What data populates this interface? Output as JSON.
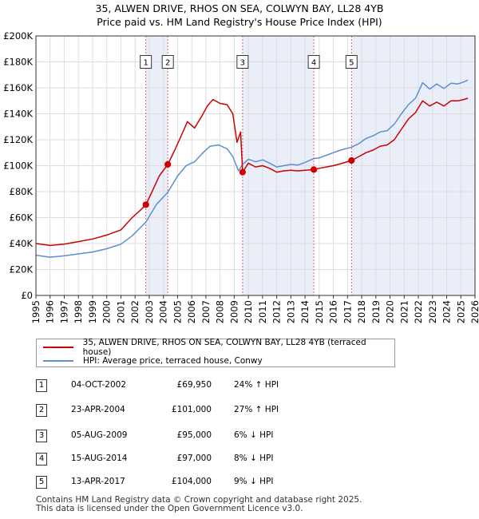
{
  "chart_data": {
    "type": "line",
    "title": "35, ALWEN DRIVE, RHOS ON SEA, COLWYN BAY, LL28 4YB",
    "subtitle": "Price paid vs. HM Land Registry's House Price Index (HPI)",
    "xlim": [
      1995,
      2026
    ],
    "ylim": [
      0,
      200000
    ],
    "x_ticks": [
      1995,
      1996,
      1997,
      1998,
      1999,
      2000,
      2001,
      2002,
      2003,
      2004,
      2005,
      2006,
      2007,
      2008,
      2009,
      2010,
      2011,
      2012,
      2013,
      2014,
      2015,
      2016,
      2017,
      2018,
      2019,
      2020,
      2021,
      2022,
      2023,
      2024,
      2025,
      2026
    ],
    "y_ticks": [
      {
        "value": 0,
        "label": "£0"
      },
      {
        "value": 20000,
        "label": "£20K"
      },
      {
        "value": 40000,
        "label": "£40K"
      },
      {
        "value": 60000,
        "label": "£60K"
      },
      {
        "value": 80000,
        "label": "£80K"
      },
      {
        "value": 100000,
        "label": "£100K"
      },
      {
        "value": 120000,
        "label": "£120K"
      },
      {
        "value": 140000,
        "label": "£140K"
      },
      {
        "value": 160000,
        "label": "£160K"
      },
      {
        "value": 180000,
        "label": "£180K"
      },
      {
        "value": 200000,
        "label": "£200K"
      }
    ],
    "series": [
      {
        "name": "35, ALWEN DRIVE, RHOS ON SEA, COLWYN BAY, LL28 4YB (terraced house)",
        "color": "#cc0000",
        "points": [
          [
            1995.0,
            40000
          ],
          [
            1996.0,
            38500
          ],
          [
            1997.0,
            39500
          ],
          [
            1998.0,
            41500
          ],
          [
            1999.0,
            43500
          ],
          [
            2000.0,
            46500
          ],
          [
            2001.0,
            50500
          ],
          [
            2001.8,
            60000
          ],
          [
            2002.4,
            66000
          ],
          [
            2002.76,
            69950
          ],
          [
            2003.2,
            80000
          ],
          [
            2003.7,
            92000
          ],
          [
            2004.31,
            101000
          ],
          [
            2004.8,
            112000
          ],
          [
            2005.3,
            124000
          ],
          [
            2005.7,
            134000
          ],
          [
            2006.2,
            129000
          ],
          [
            2006.7,
            138000
          ],
          [
            2007.1,
            146000
          ],
          [
            2007.5,
            151000
          ],
          [
            2008.0,
            148000
          ],
          [
            2008.5,
            147000
          ],
          [
            2008.9,
            140000
          ],
          [
            2009.2,
            118000
          ],
          [
            2009.45,
            126000
          ],
          [
            2009.59,
            95000
          ],
          [
            2010.0,
            102000
          ],
          [
            2010.5,
            99000
          ],
          [
            2011.0,
            100000
          ],
          [
            2011.5,
            98000
          ],
          [
            2012.0,
            95000
          ],
          [
            2012.5,
            96000
          ],
          [
            2013.0,
            96500
          ],
          [
            2013.5,
            96000
          ],
          [
            2014.0,
            96500
          ],
          [
            2014.62,
            97000
          ],
          [
            2015.0,
            98000
          ],
          [
            2015.5,
            99000
          ],
          [
            2016.0,
            100000
          ],
          [
            2016.5,
            101500
          ],
          [
            2017.28,
            104000
          ],
          [
            2017.8,
            107000
          ],
          [
            2018.3,
            110000
          ],
          [
            2018.8,
            112000
          ],
          [
            2019.3,
            115000
          ],
          [
            2019.8,
            116000
          ],
          [
            2020.3,
            120000
          ],
          [
            2020.8,
            128000
          ],
          [
            2021.3,
            136000
          ],
          [
            2021.8,
            141000
          ],
          [
            2022.3,
            150000
          ],
          [
            2022.8,
            146000
          ],
          [
            2023.3,
            149000
          ],
          [
            2023.8,
            146000
          ],
          [
            2024.3,
            150000
          ],
          [
            2024.8,
            150000
          ],
          [
            2025.2,
            151000
          ],
          [
            2025.5,
            152000
          ]
        ]
      },
      {
        "name": "HPI: Average price, terraced house, Conwy",
        "color": "#5b8fcf",
        "points": [
          [
            1995.0,
            31000
          ],
          [
            1996.0,
            29500
          ],
          [
            1997.0,
            30500
          ],
          [
            1998.0,
            32000
          ],
          [
            1999.0,
            33500
          ],
          [
            2000.0,
            36000
          ],
          [
            2001.0,
            39500
          ],
          [
            2001.8,
            46000
          ],
          [
            2002.76,
            56500
          ],
          [
            2003.5,
            70000
          ],
          [
            2004.31,
            79500
          ],
          [
            2005.0,
            92000
          ],
          [
            2005.6,
            100000
          ],
          [
            2006.2,
            103000
          ],
          [
            2006.8,
            110000
          ],
          [
            2007.3,
            115000
          ],
          [
            2007.9,
            116000
          ],
          [
            2008.5,
            113000
          ],
          [
            2008.9,
            107000
          ],
          [
            2009.3,
            96000
          ],
          [
            2009.59,
            101000
          ],
          [
            2010.0,
            105000
          ],
          [
            2010.5,
            103000
          ],
          [
            2011.0,
            104500
          ],
          [
            2011.5,
            102000
          ],
          [
            2012.0,
            99000
          ],
          [
            2012.5,
            100000
          ],
          [
            2013.0,
            101000
          ],
          [
            2013.5,
            100500
          ],
          [
            2014.0,
            102500
          ],
          [
            2014.62,
            105500
          ],
          [
            2015.0,
            106000
          ],
          [
            2015.5,
            108000
          ],
          [
            2016.0,
            110000
          ],
          [
            2016.5,
            112000
          ],
          [
            2017.28,
            114300
          ],
          [
            2017.8,
            117000
          ],
          [
            2018.3,
            121000
          ],
          [
            2018.8,
            123000
          ],
          [
            2019.3,
            126000
          ],
          [
            2019.8,
            127000
          ],
          [
            2020.3,
            132000
          ],
          [
            2020.8,
            140000
          ],
          [
            2021.3,
            147000
          ],
          [
            2021.8,
            152000
          ],
          [
            2022.3,
            164000
          ],
          [
            2022.8,
            159000
          ],
          [
            2023.3,
            163000
          ],
          [
            2023.8,
            159500
          ],
          [
            2024.3,
            163500
          ],
          [
            2024.8,
            163000
          ],
          [
            2025.2,
            164500
          ],
          [
            2025.5,
            166000
          ]
        ]
      }
    ],
    "sales": [
      {
        "id": "1",
        "x": 2002.76,
        "price": 69950
      },
      {
        "id": "2",
        "x": 2004.31,
        "price": 101000
      },
      {
        "id": "3",
        "x": 2009.59,
        "price": 95000
      },
      {
        "id": "4",
        "x": 2014.62,
        "price": 97000
      },
      {
        "id": "5",
        "x": 2017.28,
        "price": 104000
      }
    ],
    "shaded_ranges": [
      [
        2002.76,
        2004.31
      ],
      [
        2009.59,
        2014.62
      ],
      [
        2017.28,
        2026
      ]
    ],
    "shade_color": "#e9eef9",
    "marker_box_y": 180000
  },
  "legend": {
    "property_label": "35, ALWEN DRIVE, RHOS ON SEA, COLWYN BAY, LL28 4YB (terraced house)",
    "hpi_label": "HPI: Average price, terraced house, Conwy",
    "property_color": "#cc0000",
    "hpi_color": "#5b8fcf"
  },
  "transactions": [
    {
      "num": "1",
      "date": "04-OCT-2002",
      "price": "£69,950",
      "hpi": "24% ↑ HPI"
    },
    {
      "num": "2",
      "date": "23-APR-2004",
      "price": "£101,000",
      "hpi": "27% ↑ HPI"
    },
    {
      "num": "3",
      "date": "05-AUG-2009",
      "price": "£95,000",
      "hpi": "6% ↓ HPI"
    },
    {
      "num": "4",
      "date": "15-AUG-2014",
      "price": "£97,000",
      "hpi": "8% ↓ HPI"
    },
    {
      "num": "5",
      "date": "13-APR-2017",
      "price": "£104,000",
      "hpi": "9% ↓ HPI"
    }
  ],
  "footer": {
    "line1": "Contains HM Land Registry data © Crown copyright and database right 2025.",
    "line2": "This data is licensed under the Open Government Licence v3.0."
  }
}
